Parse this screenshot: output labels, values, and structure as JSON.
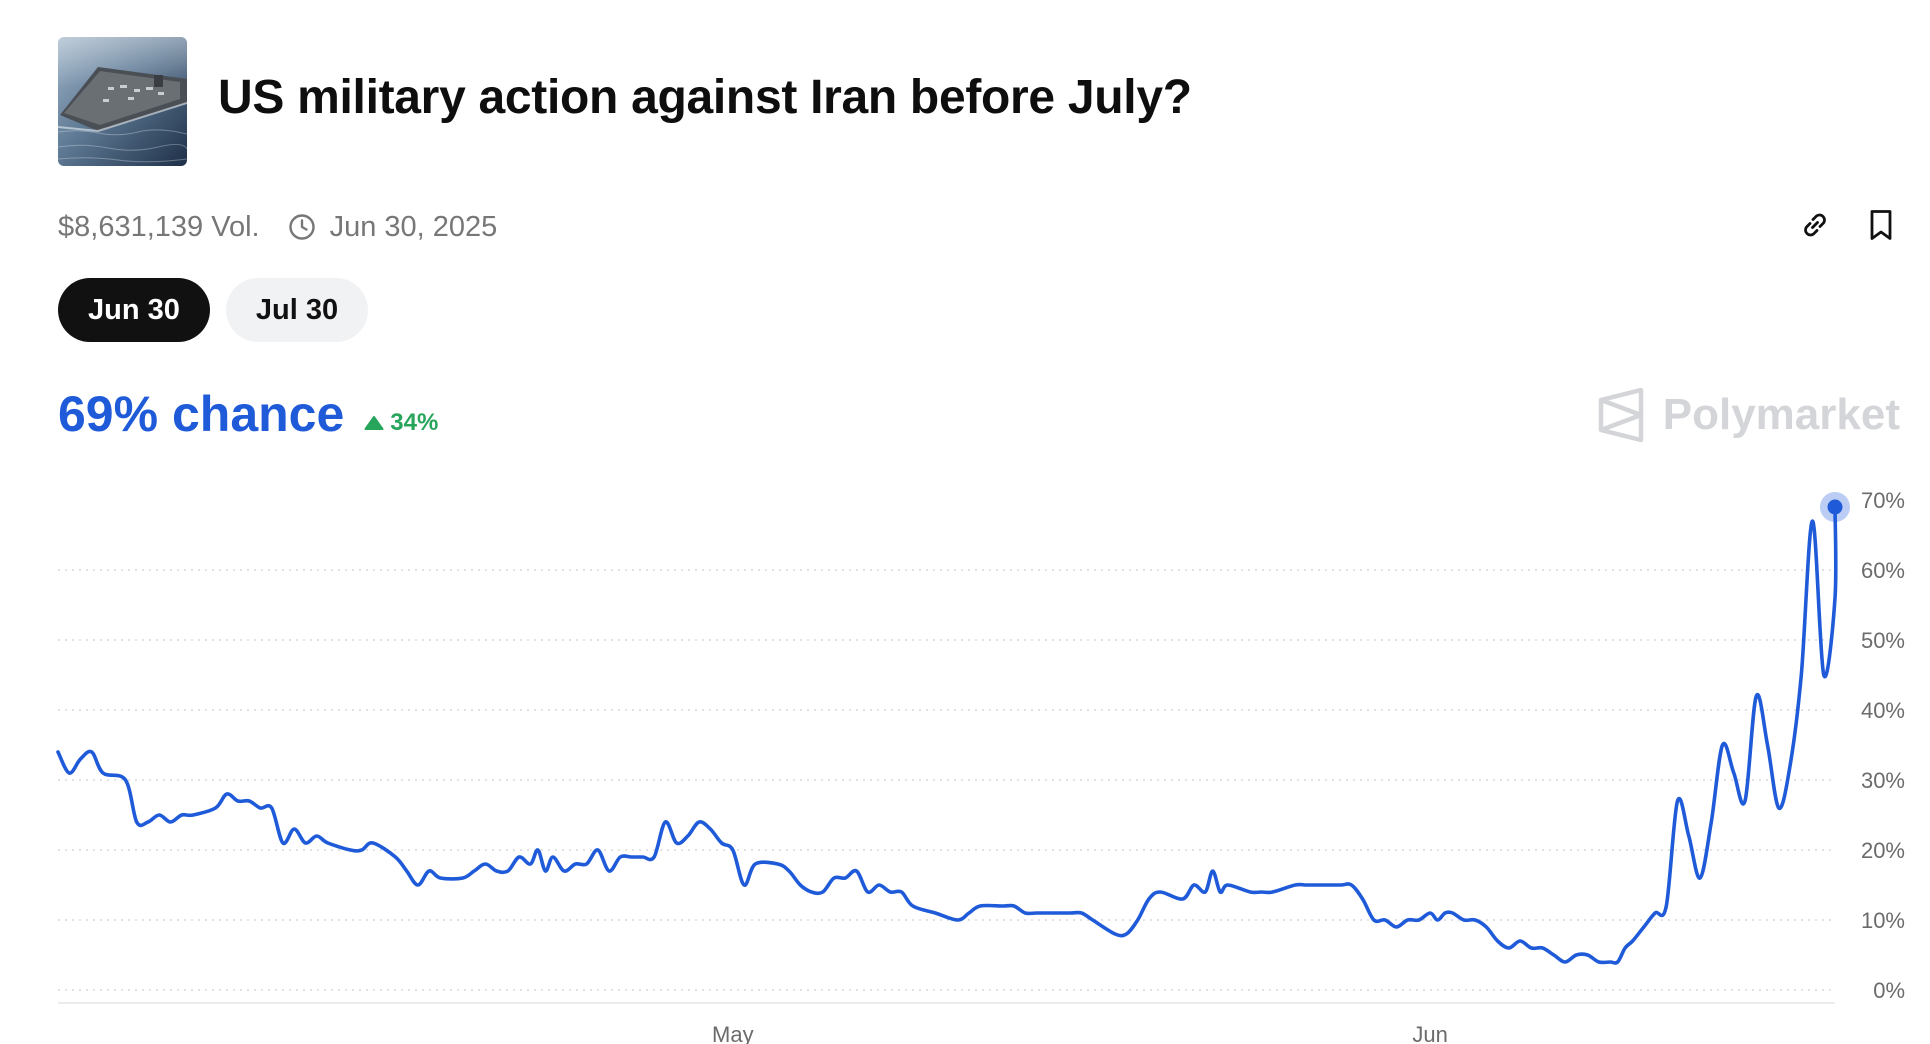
{
  "market": {
    "title": "US military action against Iran before July?",
    "thumbnail_icon": "aircraft-carrier-photo",
    "volume": "$8,631,139 Vol.",
    "end_date": "Jun 30, 2025"
  },
  "actions": {
    "link_icon": "link-icon",
    "bookmark_icon": "bookmark-icon"
  },
  "tabs": [
    {
      "label": "Jun 30",
      "active": true
    },
    {
      "label": "Jul 30",
      "active": false
    }
  ],
  "summary": {
    "chance_label": "69% chance",
    "change_label": "34%",
    "change_direction": "up",
    "accent_color": "#1f5bd9",
    "positive_color": "#27a55b"
  },
  "brand": {
    "name": "Polymarket",
    "logo_icon": "polymarket-logo-icon"
  },
  "chart_data": {
    "type": "line",
    "title": "",
    "xlabel": "",
    "ylabel": "",
    "x_range": [
      "2025-04-01",
      "2025-06-19"
    ],
    "xticks": [
      {
        "date": "2025-05-01",
        "label": "May"
      },
      {
        "date": "2025-06-01",
        "label": "Jun"
      }
    ],
    "ylim": [
      0,
      70
    ],
    "yticks": [
      0,
      10,
      20,
      30,
      40,
      50,
      60,
      70
    ],
    "ytick_labels": [
      "0%",
      "10%",
      "20%",
      "30%",
      "40%",
      "50%",
      "60%",
      "70%"
    ],
    "grid": "horizontal-dotted",
    "line_color": "#1f5bd9",
    "series": [
      {
        "points": [
          [
            "2025-04-01",
            34
          ],
          [
            "2025-04-01",
            31
          ],
          [
            "2025-04-02",
            33
          ],
          [
            "2025-04-02",
            34
          ],
          [
            "2025-04-03",
            31
          ],
          [
            "2025-04-04",
            30
          ],
          [
            "2025-04-04",
            24
          ],
          [
            "2025-04-05",
            24
          ],
          [
            "2025-04-05",
            25
          ],
          [
            "2025-04-06",
            24
          ],
          [
            "2025-04-06",
            25
          ],
          [
            "2025-04-07",
            25
          ],
          [
            "2025-04-08",
            26
          ],
          [
            "2025-04-08",
            28
          ],
          [
            "2025-04-09",
            27
          ],
          [
            "2025-04-09",
            27
          ],
          [
            "2025-04-10",
            26
          ],
          [
            "2025-04-10",
            26
          ],
          [
            "2025-04-11",
            21
          ],
          [
            "2025-04-11",
            23
          ],
          [
            "2025-04-12",
            21
          ],
          [
            "2025-04-12",
            22
          ],
          [
            "2025-04-13",
            21
          ],
          [
            "2025-04-14",
            20
          ],
          [
            "2025-04-14",
            20
          ],
          [
            "2025-04-15",
            21
          ],
          [
            "2025-04-16",
            19
          ],
          [
            "2025-04-16",
            17
          ],
          [
            "2025-04-17",
            15
          ],
          [
            "2025-04-17",
            17
          ],
          [
            "2025-04-18",
            16
          ],
          [
            "2025-04-19",
            16
          ],
          [
            "2025-04-19",
            17
          ],
          [
            "2025-04-20",
            18
          ],
          [
            "2025-04-20",
            17
          ],
          [
            "2025-04-21",
            17
          ],
          [
            "2025-04-21",
            19
          ],
          [
            "2025-04-22",
            18
          ],
          [
            "2025-04-22",
            20
          ],
          [
            "2025-04-22",
            17
          ],
          [
            "2025-04-23",
            19
          ],
          [
            "2025-04-23",
            17
          ],
          [
            "2025-04-24",
            18
          ],
          [
            "2025-04-24",
            18
          ],
          [
            "2025-04-25",
            20
          ],
          [
            "2025-04-25",
            17
          ],
          [
            "2025-04-26",
            19
          ],
          [
            "2025-04-26",
            19
          ],
          [
            "2025-04-27",
            19
          ],
          [
            "2025-04-27",
            19
          ],
          [
            "2025-04-28",
            24
          ],
          [
            "2025-04-28",
            21
          ],
          [
            "2025-04-29",
            22
          ],
          [
            "2025-04-29",
            24
          ],
          [
            "2025-04-30",
            23
          ],
          [
            "2025-04-30",
            21
          ],
          [
            "2025-05-01",
            20
          ],
          [
            "2025-05-01",
            15
          ],
          [
            "2025-05-02",
            18
          ],
          [
            "2025-05-03",
            18
          ],
          [
            "2025-05-03",
            17
          ],
          [
            "2025-05-04",
            15
          ],
          [
            "2025-05-04",
            14
          ],
          [
            "2025-05-05",
            14
          ],
          [
            "2025-05-05",
            16
          ],
          [
            "2025-05-06",
            16
          ],
          [
            "2025-05-06",
            17
          ],
          [
            "2025-05-07",
            14
          ],
          [
            "2025-05-07",
            15
          ],
          [
            "2025-05-08",
            14
          ],
          [
            "2025-05-08",
            14
          ],
          [
            "2025-05-09",
            12
          ],
          [
            "2025-05-10",
            11
          ],
          [
            "2025-05-11",
            10
          ],
          [
            "2025-05-11",
            11
          ],
          [
            "2025-05-12",
            12
          ],
          [
            "2025-05-13",
            12
          ],
          [
            "2025-05-13",
            12
          ],
          [
            "2025-05-14",
            11
          ],
          [
            "2025-05-14",
            11
          ],
          [
            "2025-05-15",
            11
          ],
          [
            "2025-05-16",
            11
          ],
          [
            "2025-05-16",
            11
          ],
          [
            "2025-05-17",
            10
          ],
          [
            "2025-05-18",
            8
          ],
          [
            "2025-05-18",
            8
          ],
          [
            "2025-05-19",
            10
          ],
          [
            "2025-05-19",
            13
          ],
          [
            "2025-05-20",
            14
          ],
          [
            "2025-05-21",
            13
          ],
          [
            "2025-05-21",
            15
          ],
          [
            "2025-05-22",
            14
          ],
          [
            "2025-05-22",
            17
          ],
          [
            "2025-05-22",
            14
          ],
          [
            "2025-05-23",
            15
          ],
          [
            "2025-05-24",
            14
          ],
          [
            "2025-05-24",
            14
          ],
          [
            "2025-05-25",
            14
          ],
          [
            "2025-05-26",
            15
          ],
          [
            "2025-05-26",
            15
          ],
          [
            "2025-05-27",
            15
          ],
          [
            "2025-05-28",
            15
          ],
          [
            "2025-05-28",
            15
          ],
          [
            "2025-05-29",
            13
          ],
          [
            "2025-05-29",
            10
          ],
          [
            "2025-05-30",
            10
          ],
          [
            "2025-05-30",
            9
          ],
          [
            "2025-05-31",
            10
          ],
          [
            "2025-05-31",
            10
          ],
          [
            "2025-06-01",
            11
          ],
          [
            "2025-06-01",
            10
          ],
          [
            "2025-06-01",
            11
          ],
          [
            "2025-06-02",
            11
          ],
          [
            "2025-06-02",
            10
          ],
          [
            "2025-06-03",
            10
          ],
          [
            "2025-06-03",
            9
          ],
          [
            "2025-06-04",
            7
          ],
          [
            "2025-06-04",
            6
          ],
          [
            "2025-06-05",
            7
          ],
          [
            "2025-06-05",
            6
          ],
          [
            "2025-06-06",
            6
          ],
          [
            "2025-06-06",
            5
          ],
          [
            "2025-06-07",
            4
          ],
          [
            "2025-06-07",
            5
          ],
          [
            "2025-06-08",
            5
          ],
          [
            "2025-06-08",
            4
          ],
          [
            "2025-06-09",
            4
          ],
          [
            "2025-06-09",
            4
          ],
          [
            "2025-06-09",
            6
          ],
          [
            "2025-06-10",
            7
          ],
          [
            "2025-06-10",
            9
          ],
          [
            "2025-06-11",
            11
          ],
          [
            "2025-06-11",
            12
          ],
          [
            "2025-06-12",
            27
          ],
          [
            "2025-06-12",
            22
          ],
          [
            "2025-06-13",
            16
          ],
          [
            "2025-06-13",
            24
          ],
          [
            "2025-06-14",
            35
          ],
          [
            "2025-06-14",
            31
          ],
          [
            "2025-06-15",
            27
          ],
          [
            "2025-06-15",
            42
          ],
          [
            "2025-06-16",
            35
          ],
          [
            "2025-06-16",
            26
          ],
          [
            "2025-06-17",
            32
          ],
          [
            "2025-06-17",
            45
          ],
          [
            "2025-06-18",
            67
          ],
          [
            "2025-06-18",
            45
          ],
          [
            "2025-06-19",
            56
          ],
          [
            "2025-06-19",
            69
          ]
        ]
      }
    ],
    "last_value": 69
  }
}
